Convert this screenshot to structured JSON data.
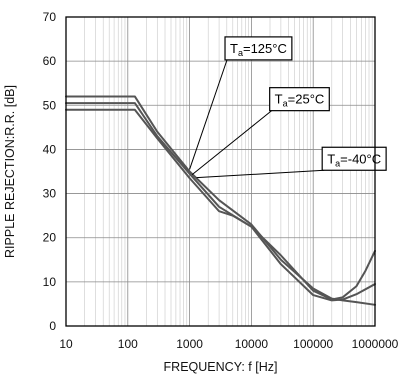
{
  "chart_data": {
    "type": "line",
    "xlabel": "FREQUENCY: f [Hz]",
    "ylabel": "RIPPLE REJECTION:R.R. [dB]",
    "x_scale": "log",
    "xlim": [
      10,
      1000000
    ],
    "ylim": [
      0,
      70
    ],
    "x_ticks": [
      10,
      100,
      1000,
      10000,
      100000,
      1000000
    ],
    "x_tick_labels": [
      "10",
      "100",
      "1000",
      "10000",
      "100000",
      "1000000"
    ],
    "y_ticks": [
      0,
      10,
      20,
      30,
      40,
      50,
      60,
      70
    ],
    "y_tick_labels": [
      "0",
      "10",
      "20",
      "30",
      "40",
      "50",
      "60",
      "70"
    ],
    "grid": true,
    "line_color": "#555555",
    "series": [
      {
        "name": "Ta=125°C",
        "label_main": "T",
        "label_sub": "a",
        "label_rest": "=125°C",
        "points": [
          [
            10,
            52
          ],
          [
            130,
            52
          ],
          [
            300,
            44
          ],
          [
            1000,
            35
          ],
          [
            3000,
            28.5
          ],
          [
            10000,
            23
          ],
          [
            30000,
            15
          ],
          [
            100000,
            8.5
          ],
          [
            200000,
            6.2
          ],
          [
            300000,
            5.8
          ],
          [
            500000,
            5.4
          ],
          [
            1000000,
            4.8
          ]
        ]
      },
      {
        "name": "Ta=25°C",
        "label_main": "T",
        "label_sub": "a",
        "label_rest": "=25°C",
        "points": [
          [
            10,
            50.5
          ],
          [
            130,
            50.5
          ],
          [
            300,
            43
          ],
          [
            1000,
            34.5
          ],
          [
            3000,
            27
          ],
          [
            10000,
            22.5
          ],
          [
            30000,
            14
          ],
          [
            100000,
            7
          ],
          [
            200000,
            5.8
          ],
          [
            300000,
            6
          ],
          [
            500000,
            7.2
          ],
          [
            1000000,
            9.5
          ]
        ]
      },
      {
        "name": "Ta=-40°C",
        "label_main": "T",
        "label_sub": "a",
        "label_rest": "=-40°C",
        "points": [
          [
            10,
            49
          ],
          [
            130,
            49
          ],
          [
            300,
            42.5
          ],
          [
            1000,
            33.5
          ],
          [
            3000,
            26
          ],
          [
            5000,
            25
          ],
          [
            10000,
            22.5
          ],
          [
            30000,
            16
          ],
          [
            100000,
            8
          ],
          [
            200000,
            6
          ],
          [
            300000,
            6.5
          ],
          [
            500000,
            9
          ],
          [
            700000,
            12.5
          ],
          [
            1000000,
            17
          ]
        ]
      }
    ],
    "annotations": [
      {
        "series": 0,
        "box_at": [
          13000,
          63
        ],
        "pointer_to": [
          1000,
          35.5
        ]
      },
      {
        "series": 1,
        "box_at": [
          60000,
          51.5
        ],
        "pointer_to": [
          1100,
          34.3
        ]
      },
      {
        "series": 2,
        "box_at": [
          460000,
          38
        ],
        "pointer_to": [
          1300,
          33.6
        ]
      }
    ]
  }
}
